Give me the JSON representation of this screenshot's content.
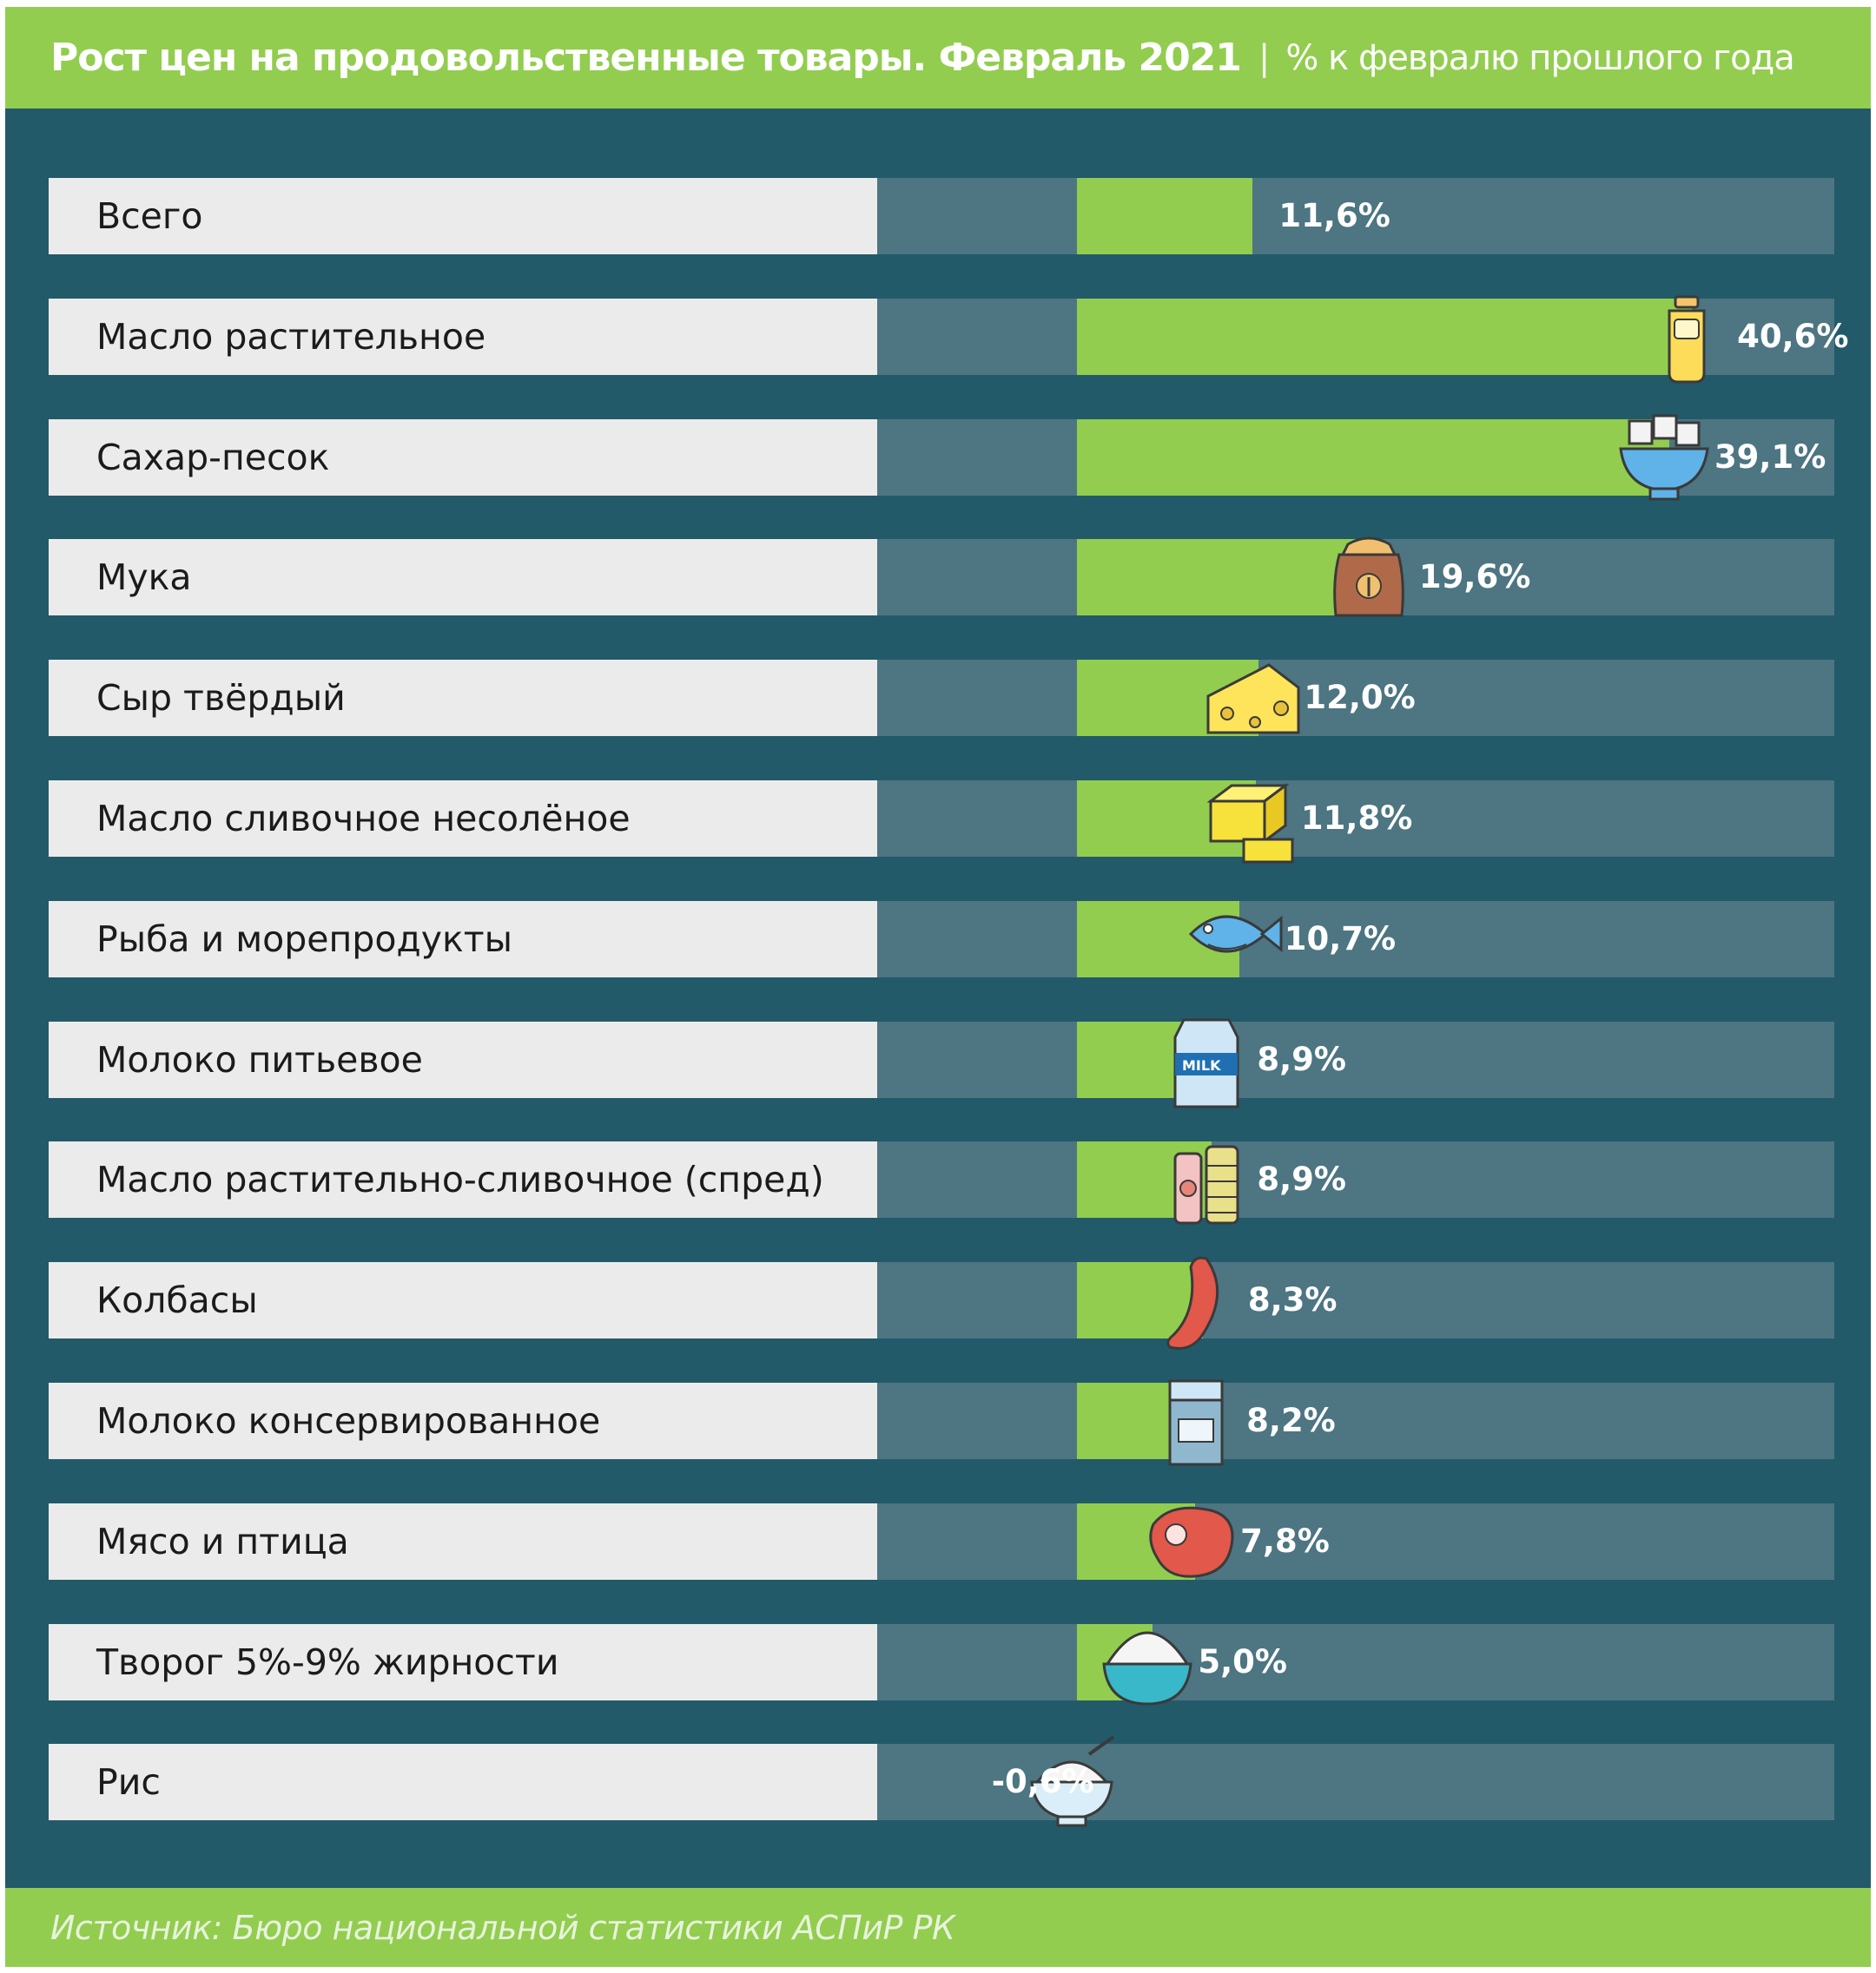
{
  "header": {
    "title": "Рост цен на продовольственные товары. Февраль 2021",
    "separator": "|",
    "subtitle": "% к февралю прошлого года"
  },
  "footer": {
    "source": "Источник: Бюро национальной статистики АСПиР РК"
  },
  "colors": {
    "background": "#225a69",
    "header_footer": "#92cd4f",
    "bar": "#92cd4f",
    "track": "#4d7582",
    "label_box": "#ebebeb"
  },
  "chart_data": {
    "type": "bar",
    "orientation": "horizontal",
    "title": "Рост цен на продовольственные товары. Февраль 2021",
    "subtitle": "% к февралю прошлого года",
    "unit": "%",
    "categories": [
      "Всего",
      "Масло растительное",
      "Сахар-песок",
      "Мука",
      "Сыр твёрдый",
      "Масло сливочное несолёное",
      "Рыба и морепродукты",
      "Молоко питьевое",
      "Масло растительно-сливочное (спред)",
      "Колбасы",
      "Молоко консервированное",
      "Мясо и птица",
      "Творог 5%-9% жирности",
      "Рис"
    ],
    "values": [
      11.6,
      40.6,
      39.1,
      19.6,
      12.0,
      11.8,
      10.7,
      8.9,
      8.9,
      8.3,
      8.2,
      7.8,
      5.0,
      -0.6
    ],
    "value_labels": [
      "11,6%",
      "40,6%",
      "39,1%",
      "19,6%",
      "12,0%",
      "11,8%",
      "10,7%",
      "8,9%",
      "8,9%",
      "8,3%",
      "8,2%",
      "7,8%",
      "5,0%",
      "-0,6%"
    ],
    "icons": [
      "",
      "oil-bottle-icon",
      "sugar-bowl-icon",
      "flour-sack-icon",
      "cheese-icon",
      "butter-icon",
      "fish-icon",
      "milk-carton-icon",
      "spread-bottles-icon",
      "sausage-icon",
      "condensed-milk-icon",
      "meat-steak-icon",
      "cottage-cheese-bowl-icon",
      "rice-bowl-icon"
    ],
    "xlim": [
      -13.2,
      50.0
    ],
    "zero_line": 0
  }
}
